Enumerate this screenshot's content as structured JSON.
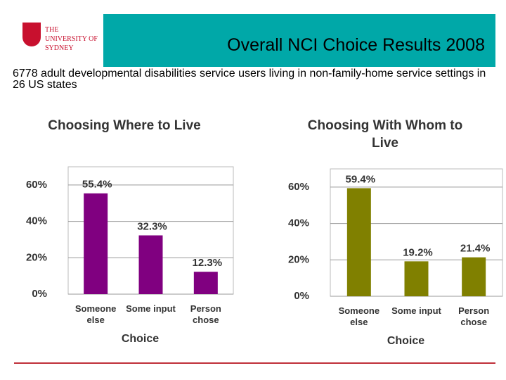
{
  "header": {
    "logo": "THE UNIVERSITY OF SYDNEY",
    "title": "Overall NCI Choice Results 2008",
    "subtitle": "6778 adult developmental disabilities service users living in non-family-home service settings in 26 US states"
  },
  "chart_data": [
    {
      "type": "bar",
      "title": "Choosing Where to Live",
      "x_label": "Choice",
      "categories": [
        "Someone else",
        "Some input",
        "Person chose"
      ],
      "values": [
        55.4,
        32.3,
        12.3
      ],
      "value_labels": [
        "55.4%",
        "32.3%",
        "12.3%"
      ],
      "color": "#800080",
      "ylim": [
        0,
        70
      ],
      "yticks": [
        {
          "value": 0,
          "label": "0%"
        },
        {
          "value": 20,
          "label": "20%"
        },
        {
          "value": 40,
          "label": "40%"
        },
        {
          "value": 60,
          "label": "60%"
        }
      ],
      "grid": true
    },
    {
      "type": "bar",
      "title": "Choosing With Whom to Live",
      "x_label": "Choice",
      "categories": [
        "Someone else",
        "Some input",
        "Person chose"
      ],
      "values": [
        59.4,
        19.2,
        21.4
      ],
      "value_labels": [
        "59.4%",
        "19.2%",
        "21.4%"
      ],
      "color": "#808000",
      "ylim": [
        0,
        70
      ],
      "yticks": [
        {
          "value": 0,
          "label": "0%"
        },
        {
          "value": 20,
          "label": "20%"
        },
        {
          "value": 40,
          "label": "40%"
        },
        {
          "value": 60,
          "label": "60%"
        }
      ],
      "grid": true
    }
  ]
}
